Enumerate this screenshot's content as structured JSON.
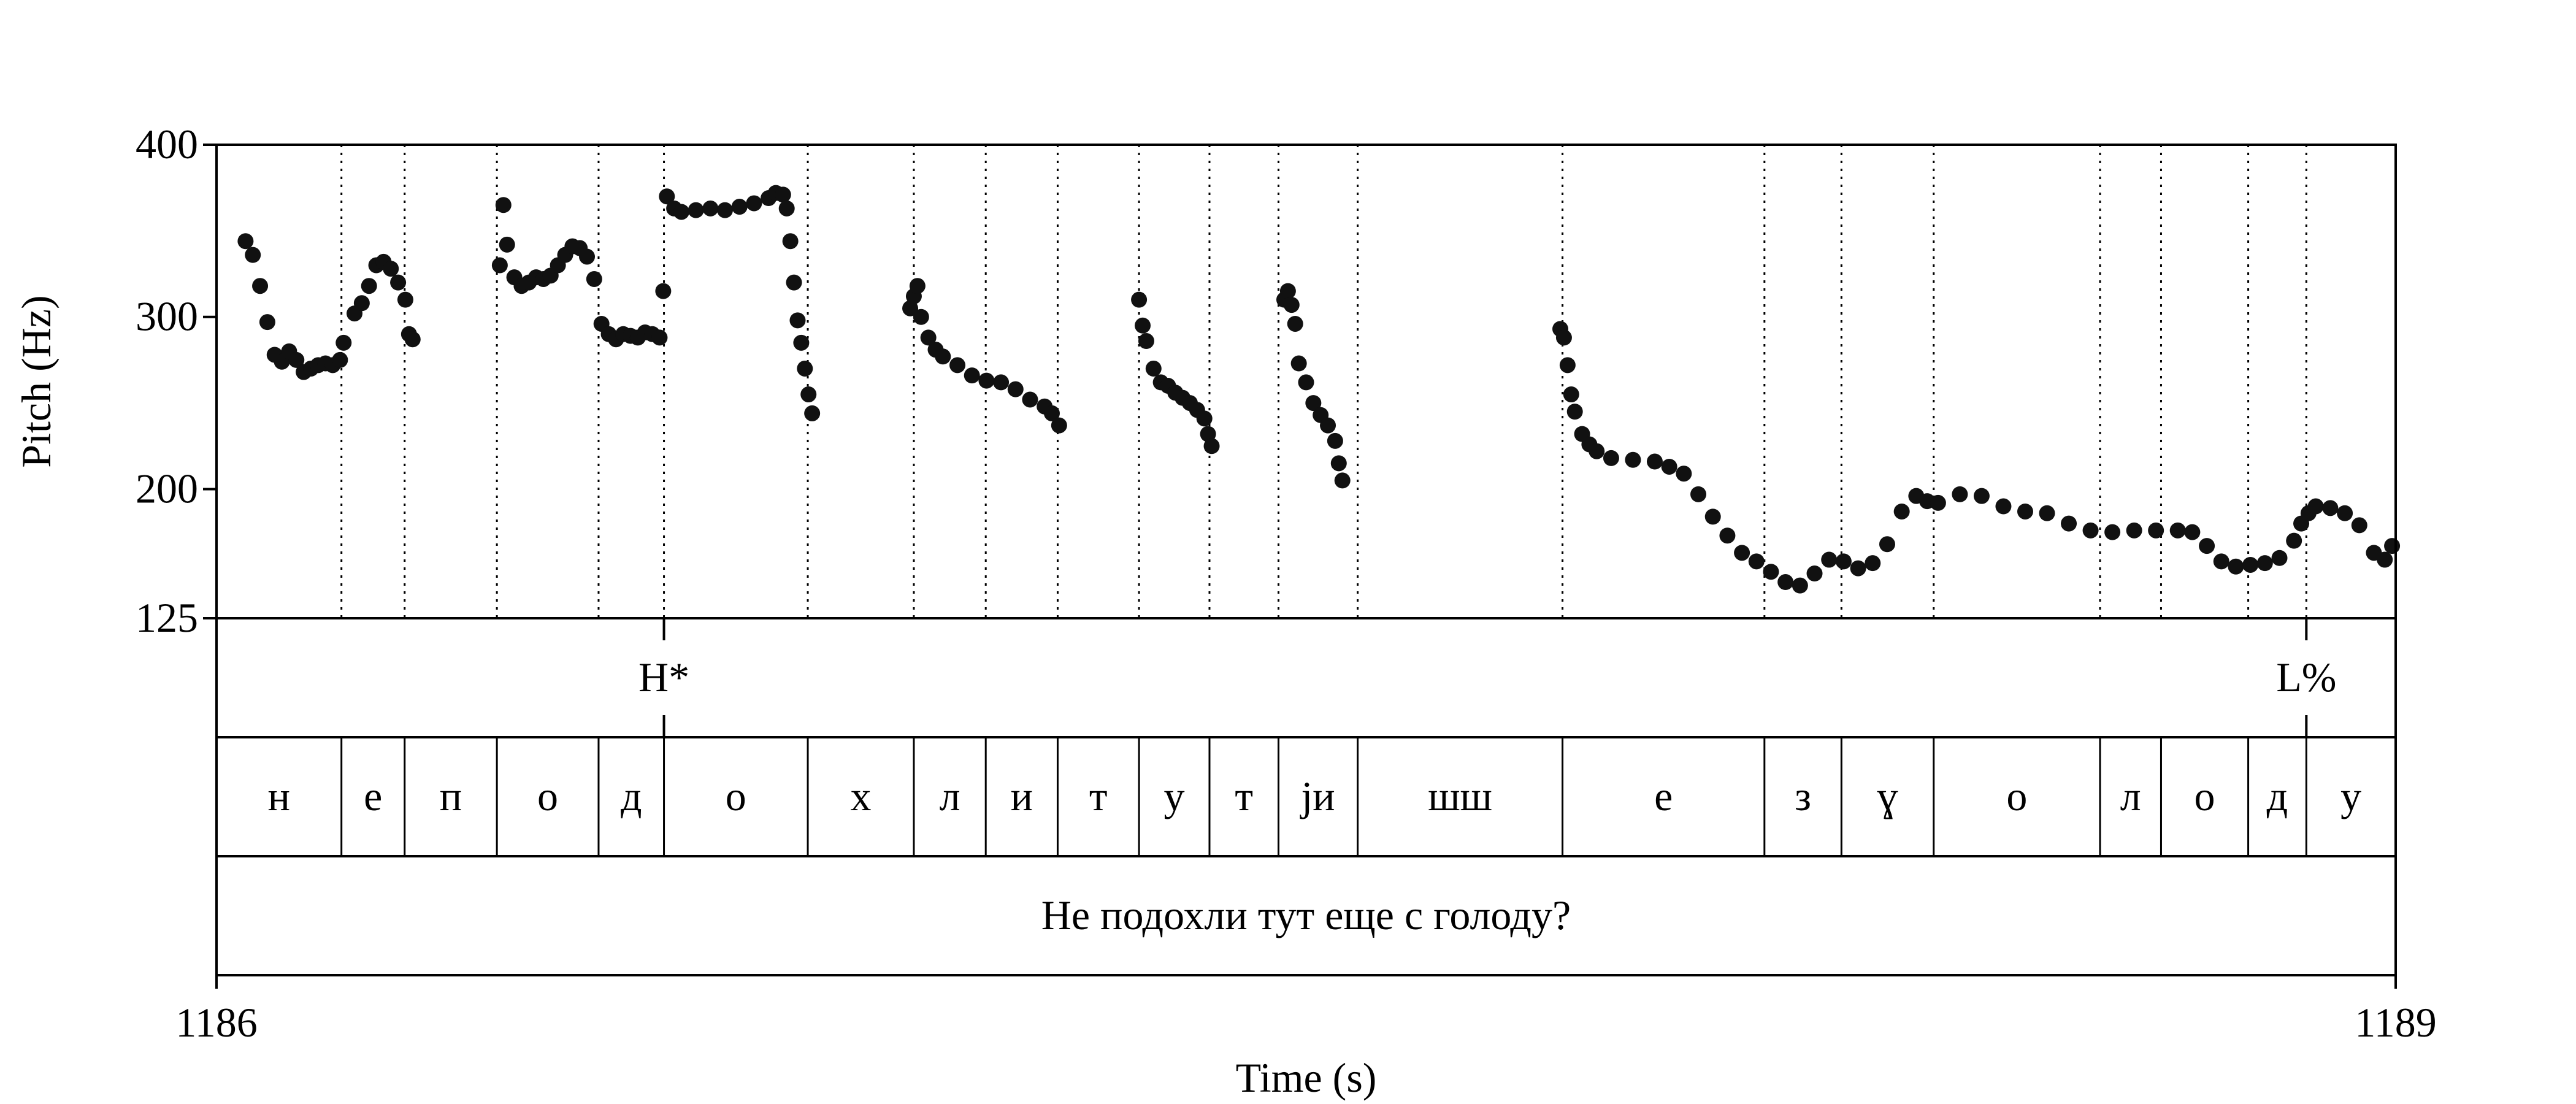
{
  "chart_data": {
    "type": "scatter",
    "title": "",
    "xlabel": "Time (s)",
    "ylabel": "Pitch (Hz)",
    "xlim": [
      1186,
      1189
    ],
    "ylim": [
      125,
      400
    ],
    "x_ticks": [
      "1186",
      "1189"
    ],
    "y_ticks": [
      {
        "value": 400,
        "label": "400"
      },
      {
        "value": 300,
        "label": "300"
      },
      {
        "value": 200,
        "label": "200"
      },
      {
        "value": 125,
        "label": "125"
      }
    ],
    "segment_boundaries": [
      1186.172,
      1186.259,
      1186.386,
      1186.526,
      1186.616,
      1186.814,
      1186.96,
      1187.059,
      1187.158,
      1187.27,
      1187.367,
      1187.462,
      1187.571,
      1187.853,
      1188.131,
      1188.237,
      1188.364,
      1188.593,
      1188.677,
      1188.797,
      1188.877
    ],
    "tones": [
      {
        "label": "H*",
        "time": 1186.616
      },
      {
        "label": "L%",
        "time": 1188.877
      }
    ],
    "phones": [
      {
        "label": "н",
        "start": 1186.0,
        "end": 1186.172
      },
      {
        "label": "е",
        "start": 1186.172,
        "end": 1186.259
      },
      {
        "label": "п",
        "start": 1186.259,
        "end": 1186.386
      },
      {
        "label": "о",
        "start": 1186.386,
        "end": 1186.526
      },
      {
        "label": "д",
        "start": 1186.526,
        "end": 1186.616
      },
      {
        "label": "о",
        "start": 1186.616,
        "end": 1186.814
      },
      {
        "label": "х",
        "start": 1186.814,
        "end": 1186.96
      },
      {
        "label": "л",
        "start": 1186.96,
        "end": 1187.059
      },
      {
        "label": "и",
        "start": 1187.059,
        "end": 1187.158
      },
      {
        "label": "т",
        "start": 1187.158,
        "end": 1187.27
      },
      {
        "label": "у",
        "start": 1187.27,
        "end": 1187.367
      },
      {
        "label": "т",
        "start": 1187.367,
        "end": 1187.462
      },
      {
        "label": "jи",
        "start": 1187.462,
        "end": 1187.571
      },
      {
        "label": "шш",
        "start": 1187.571,
        "end": 1187.853
      },
      {
        "label": "е",
        "start": 1187.853,
        "end": 1188.131
      },
      {
        "label": "з",
        "start": 1188.131,
        "end": 1188.237
      },
      {
        "label": "ɣ",
        "start": 1188.237,
        "end": 1188.364
      },
      {
        "label": "о",
        "start": 1188.364,
        "end": 1188.593
      },
      {
        "label": "л",
        "start": 1188.593,
        "end": 1188.677
      },
      {
        "label": "о",
        "start": 1188.677,
        "end": 1188.797
      },
      {
        "label": "д",
        "start": 1188.797,
        "end": 1188.877
      },
      {
        "label": "у",
        "start": 1188.877,
        "end": 1189.0
      }
    ],
    "sentence": "Не подохли тут еще с голоду?",
    "series": [
      {
        "values": [
          [
            1186.04,
            344
          ],
          [
            1186.05,
            336
          ],
          [
            1186.06,
            318
          ],
          [
            1186.07,
            297
          ],
          [
            1186.08,
            278
          ],
          [
            1186.09,
            274
          ],
          [
            1186.1,
            280
          ],
          [
            1186.11,
            275
          ],
          [
            1186.12,
            268
          ],
          [
            1186.13,
            270
          ],
          [
            1186.14,
            272
          ],
          [
            1186.15,
            273
          ],
          [
            1186.16,
            272
          ],
          [
            1186.17,
            275
          ],
          [
            1186.175,
            285
          ],
          [
            1186.19,
            302
          ],
          [
            1186.2,
            308
          ],
          [
            1186.21,
            318
          ],
          [
            1186.22,
            330
          ],
          [
            1186.23,
            332
          ],
          [
            1186.24,
            328
          ],
          [
            1186.25,
            320
          ],
          [
            1186.26,
            310
          ],
          [
            1186.265,
            290
          ],
          [
            1186.27,
            287
          ],
          [
            1186.39,
            330
          ],
          [
            1186.395,
            365
          ],
          [
            1186.4,
            342
          ],
          [
            1186.41,
            323
          ],
          [
            1186.42,
            318
          ],
          [
            1186.43,
            320
          ],
          [
            1186.44,
            323
          ],
          [
            1186.45,
            322
          ],
          [
            1186.46,
            324
          ],
          [
            1186.47,
            330
          ],
          [
            1186.48,
            336
          ],
          [
            1186.49,
            341
          ],
          [
            1186.5,
            340
          ],
          [
            1186.51,
            335
          ],
          [
            1186.52,
            322
          ],
          [
            1186.53,
            296
          ],
          [
            1186.54,
            290
          ],
          [
            1186.55,
            287
          ],
          [
            1186.56,
            290
          ],
          [
            1186.57,
            289
          ],
          [
            1186.58,
            288
          ],
          [
            1186.59,
            291
          ],
          [
            1186.6,
            290
          ],
          [
            1186.61,
            288
          ],
          [
            1186.615,
            315
          ],
          [
            1186.62,
            370
          ],
          [
            1186.63,
            363
          ],
          [
            1186.64,
            361
          ],
          [
            1186.66,
            362
          ],
          [
            1186.68,
            363
          ],
          [
            1186.7,
            362
          ],
          [
            1186.72,
            364
          ],
          [
            1186.74,
            366
          ],
          [
            1186.76,
            369
          ],
          [
            1186.77,
            372
          ],
          [
            1186.78,
            371
          ],
          [
            1186.785,
            363
          ],
          [
            1186.79,
            344
          ],
          [
            1186.795,
            320
          ],
          [
            1186.8,
            298
          ],
          [
            1186.805,
            285
          ],
          [
            1186.81,
            270
          ],
          [
            1186.815,
            255
          ],
          [
            1186.82,
            244
          ],
          [
            1186.955,
            305
          ],
          [
            1186.96,
            312
          ],
          [
            1186.965,
            318
          ],
          [
            1186.97,
            300
          ],
          [
            1186.98,
            288
          ],
          [
            1186.99,
            281
          ],
          [
            1187.0,
            277
          ],
          [
            1187.02,
            272
          ],
          [
            1187.04,
            266
          ],
          [
            1187.06,
            263
          ],
          [
            1187.08,
            262
          ],
          [
            1187.1,
            258
          ],
          [
            1187.12,
            252
          ],
          [
            1187.14,
            248
          ],
          [
            1187.15,
            244
          ],
          [
            1187.16,
            237
          ],
          [
            1187.27,
            310
          ],
          [
            1187.275,
            295
          ],
          [
            1187.28,
            286
          ],
          [
            1187.29,
            270
          ],
          [
            1187.3,
            262
          ],
          [
            1187.31,
            260
          ],
          [
            1187.32,
            256
          ],
          [
            1187.33,
            253
          ],
          [
            1187.34,
            250
          ],
          [
            1187.35,
            246
          ],
          [
            1187.36,
            241
          ],
          [
            1187.365,
            232
          ],
          [
            1187.37,
            225
          ],
          [
            1187.47,
            310
          ],
          [
            1187.475,
            315
          ],
          [
            1187.48,
            307
          ],
          [
            1187.485,
            296
          ],
          [
            1187.49,
            273
          ],
          [
            1187.5,
            262
          ],
          [
            1187.51,
            250
          ],
          [
            1187.52,
            243
          ],
          [
            1187.53,
            237
          ],
          [
            1187.54,
            228
          ],
          [
            1187.545,
            215
          ],
          [
            1187.55,
            205
          ],
          [
            1187.85,
            293
          ],
          [
            1187.855,
            288
          ],
          [
            1187.86,
            272
          ],
          [
            1187.865,
            255
          ],
          [
            1187.87,
            245
          ],
          [
            1187.88,
            232
          ],
          [
            1187.89,
            226
          ],
          [
            1187.9,
            222
          ],
          [
            1187.92,
            218
          ],
          [
            1187.95,
            217
          ],
          [
            1187.98,
            216
          ],
          [
            1188.0,
            213
          ],
          [
            1188.02,
            209
          ],
          [
            1188.04,
            197
          ],
          [
            1188.06,
            184
          ],
          [
            1188.08,
            173
          ],
          [
            1188.1,
            163
          ],
          [
            1188.12,
            158
          ],
          [
            1188.14,
            152
          ],
          [
            1188.16,
            146
          ],
          [
            1188.18,
            144
          ],
          [
            1188.2,
            151
          ],
          [
            1188.22,
            159
          ],
          [
            1188.24,
            158
          ],
          [
            1188.26,
            154
          ],
          [
            1188.28,
            157
          ],
          [
            1188.3,
            168
          ],
          [
            1188.32,
            187
          ],
          [
            1188.34,
            196
          ],
          [
            1188.355,
            193
          ],
          [
            1188.37,
            192
          ],
          [
            1188.4,
            197
          ],
          [
            1188.43,
            196
          ],
          [
            1188.46,
            190
          ],
          [
            1188.49,
            187
          ],
          [
            1188.52,
            186
          ],
          [
            1188.55,
            180
          ],
          [
            1188.58,
            176
          ],
          [
            1188.61,
            175
          ],
          [
            1188.64,
            176
          ],
          [
            1188.67,
            176
          ],
          [
            1188.7,
            176
          ],
          [
            1188.72,
            175
          ],
          [
            1188.74,
            167
          ],
          [
            1188.76,
            158
          ],
          [
            1188.78,
            155
          ],
          [
            1188.8,
            156
          ],
          [
            1188.82,
            157
          ],
          [
            1188.84,
            160
          ],
          [
            1188.86,
            170
          ],
          [
            1188.87,
            180
          ],
          [
            1188.88,
            186
          ],
          [
            1188.89,
            190
          ],
          [
            1188.91,
            189
          ],
          [
            1188.93,
            186
          ],
          [
            1188.95,
            179
          ],
          [
            1188.97,
            163
          ],
          [
            1188.985,
            159
          ],
          [
            1188.995,
            167
          ]
        ]
      }
    ]
  }
}
